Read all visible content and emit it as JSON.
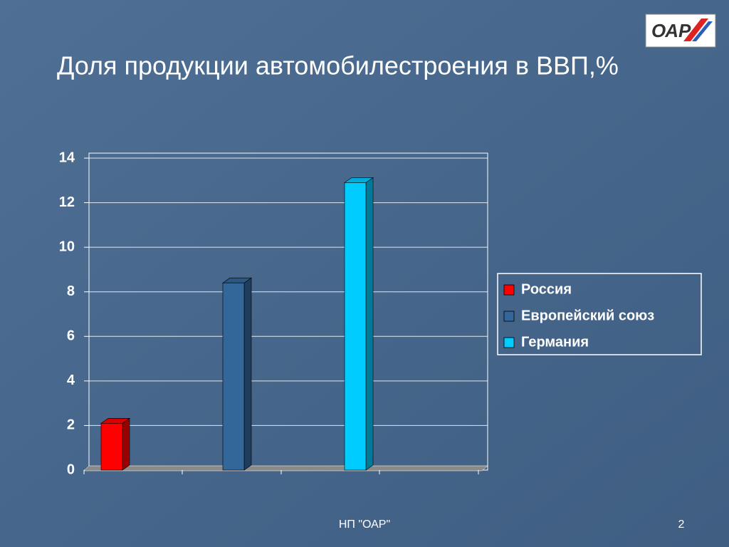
{
  "chart_data": {
    "type": "bar",
    "title": "Доля продукции автомобилестроения в ВВП,%",
    "categories": [
      null
    ],
    "series": [
      {
        "name": "Россия",
        "color": "#ff0000",
        "values": [
          2.1
        ]
      },
      {
        "name": "Европейский союз",
        "color": "#336699",
        "values": [
          8.4
        ]
      },
      {
        "name": "Германия",
        "color": "#00ccff",
        "values": [
          12.9
        ]
      }
    ],
    "ylim": [
      0,
      14
    ],
    "yticks": [
      0,
      2,
      4,
      6,
      8,
      10,
      12,
      14
    ],
    "grid": true,
    "legend": "right"
  },
  "footer": {
    "organization": "НП \"ОАР\"",
    "page_number": "2"
  }
}
